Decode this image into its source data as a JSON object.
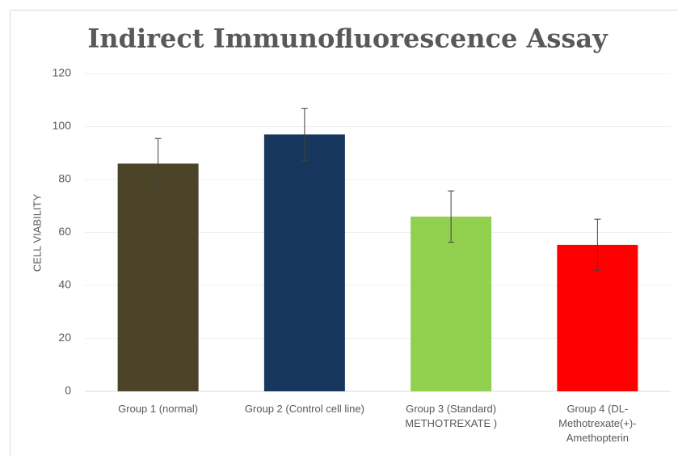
{
  "chart_data": {
    "type": "bar",
    "title": "Indirect Immunofluorescence Assay",
    "y_label": "CELL VIABILITY",
    "categories": [
      "Group 1 (normal)",
      "Group 2 (Control  cell line)",
      "Group 3 (Standard) METHOTREXATE )",
      "Group 4 (DL-Methotrexate(+)-Amethopterin"
    ],
    "values": [
      86,
      97,
      66,
      55.3
    ],
    "errors": [
      9.5,
      9.8,
      9.7,
      9.7
    ],
    "colors": [
      "#4b4429",
      "#17375e",
      "#92d050",
      "#ff0000"
    ],
    "ylim": [
      0,
      120
    ],
    "yticks": [
      0,
      20,
      40,
      60,
      80,
      100,
      120
    ],
    "grid": true
  }
}
